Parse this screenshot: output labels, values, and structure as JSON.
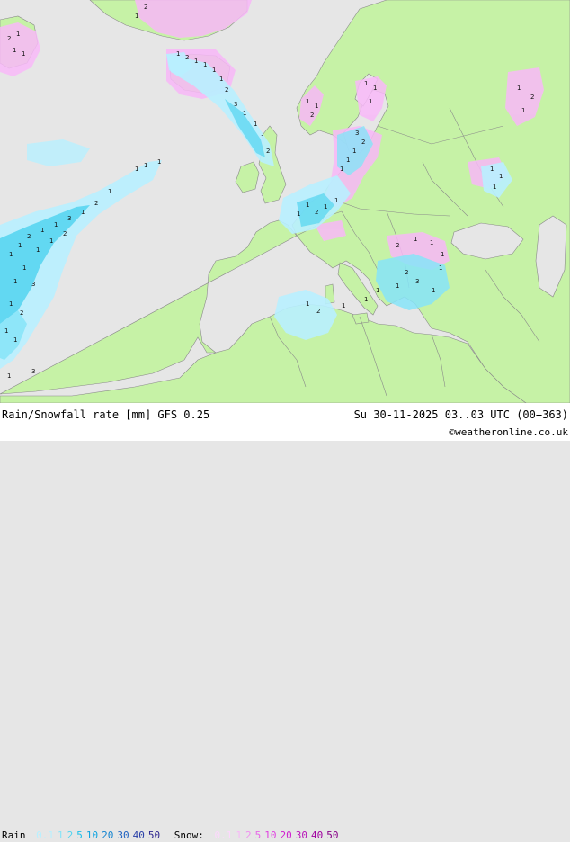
{
  "header": {
    "title": "Rain/Snowfall rate [mm] GFS 0.25",
    "valid_time": "Su 30-11-2025 03..03 UTC (00+363)",
    "credit": "©weatheronline.co.uk"
  },
  "legend": {
    "rain_label": "Rain",
    "rain_levels": [
      "0.1",
      "1",
      "2",
      "5",
      "10",
      "20",
      "30",
      "40",
      "50"
    ],
    "rain_colors": [
      "#b8f0ff",
      "#86e4f8",
      "#52d4f0",
      "#1ec0ea",
      "#10a4e0",
      "#1484d0",
      "#1e60c0",
      "#2a40a8",
      "#302890"
    ],
    "snow_label": "Snow:",
    "snow_levels": [
      "0.1",
      "1",
      "2",
      "5",
      "10",
      "20",
      "30",
      "40",
      "50"
    ],
    "snow_colors": [
      "#fcd8fc",
      "#f8b8f8",
      "#f090f0",
      "#e868e8",
      "#e040e0",
      "#d020d0",
      "#b810b8",
      "#a000a0",
      "#880088"
    ]
  },
  "map_colors": {
    "sea": "#e6e6e6",
    "land": "#c6f2a6",
    "snow_light": "#f8b8f8",
    "rain_light": "#b8f0ff",
    "rain_mid": "#52d4f0"
  },
  "map_labels": {
    "marks": [
      "1",
      "2",
      "3"
    ]
  }
}
